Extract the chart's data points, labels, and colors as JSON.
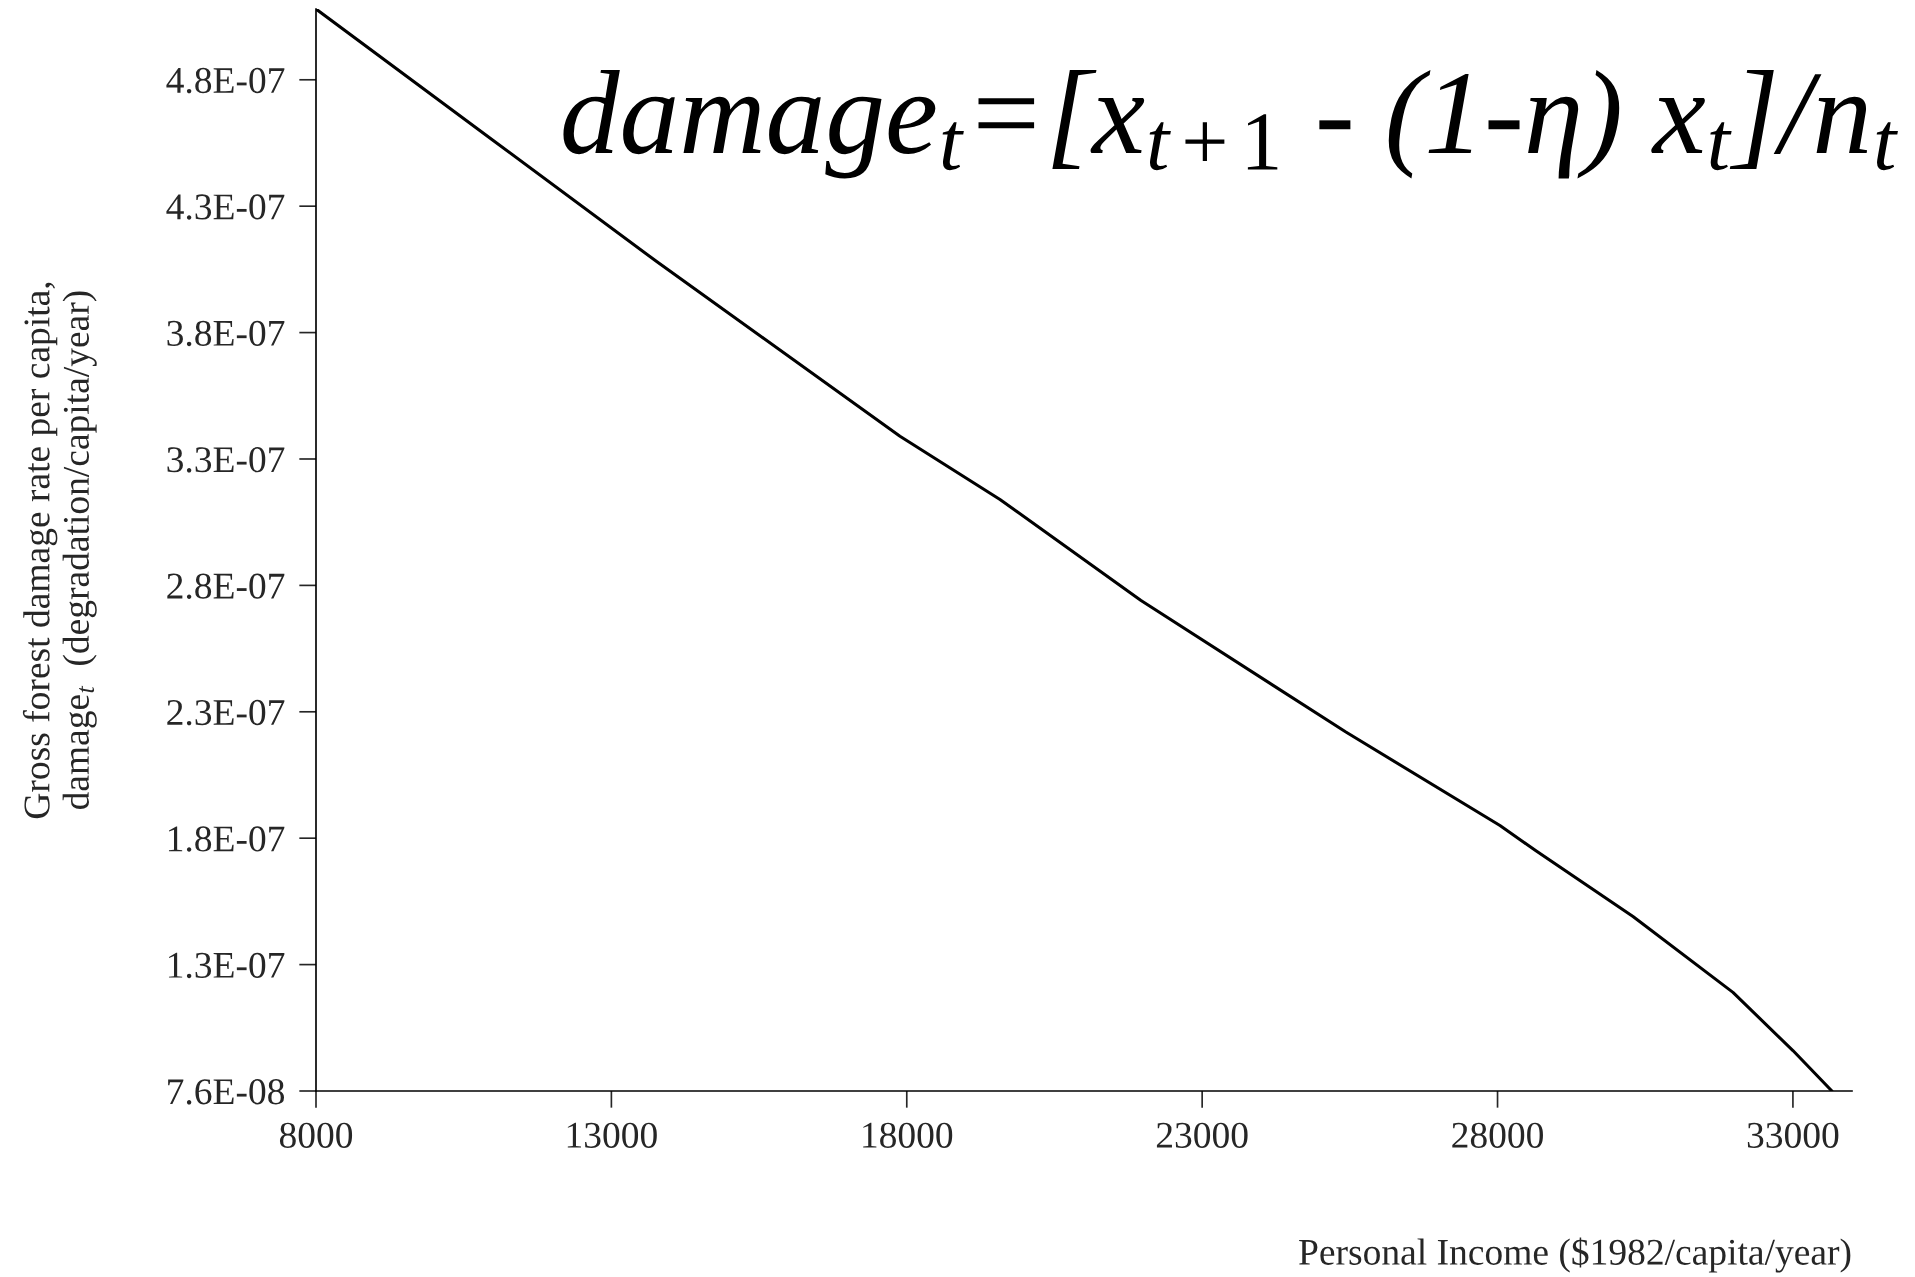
{
  "chart_data": {
    "type": "line",
    "title": "damage$_{t}$=[x$_{t+1}$ - (1-η) x$_{t}$]/n$_{t}$",
    "xlabel": "Personal Income ($1982/capita/year)",
    "ylabel": "Gross forest damage rate per capita,\ndamage$_{t}$  (degradation/capita/year)",
    "series": [
      {
        "color": "#000000",
        "x": [
          8000,
          11000,
          13772,
          17885,
          19578,
          21965,
          25433,
          28041,
          28650,
          30293,
          31985,
          33000,
          33660
        ],
        "values": [
          5.04e-07,
          4.52e-07,
          4.04e-07,
          3.35e-07,
          3.1e-07,
          2.7e-07,
          2.18e-07,
          1.81e-07,
          1.71e-07,
          1.45e-07,
          1.15e-07,
          9.2e-08,
          7.6e-08
        ]
      }
    ],
    "xlim": [
      8000,
      34000
    ],
    "xticks": [
      8000,
      13000,
      18000,
      23000,
      28000,
      33000
    ],
    "ylim": [
      7.6e-08,
      5.04e-07
    ],
    "yticks": [
      {
        "value": 7.6e-08,
        "label": "7.6E-08"
      },
      {
        "value": 1.26e-07,
        "label": "1.3E-07"
      },
      {
        "value": 1.76e-07,
        "label": "1.8E-07"
      },
      {
        "value": 2.26e-07,
        "label": "2.3E-07"
      },
      {
        "value": 2.76e-07,
        "label": "2.8E-07"
      },
      {
        "value": 3.26e-07,
        "label": "3.3E-07"
      },
      {
        "value": 3.76e-07,
        "label": "3.8E-07"
      },
      {
        "value": 4.26e-07,
        "label": "4.3E-07"
      },
      {
        "value": 4.76e-07,
        "label": "4.8E-07"
      }
    ],
    "grid": false,
    "legend": false,
    "marker": "none",
    "line_style": "solid"
  }
}
